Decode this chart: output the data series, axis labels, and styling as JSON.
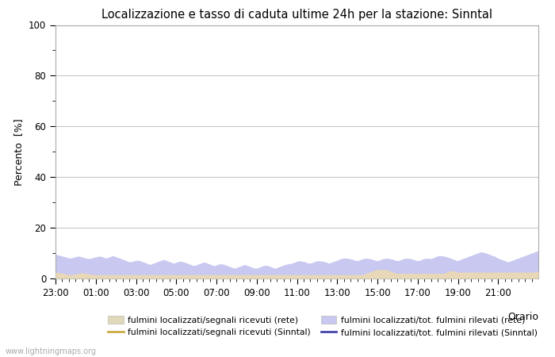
{
  "title": "Localizzazione e tasso di caduta ultime 24h per la stazione: Sinntal",
  "xlabel": "Orario",
  "ylabel": "Percento  [%]",
  "ylim": [
    0,
    100
  ],
  "yticks": [
    0,
    20,
    40,
    60,
    80,
    100
  ],
  "yticks_minor": [
    10,
    30,
    50,
    70,
    90
  ],
  "x_labels": [
    "23:00",
    "01:00",
    "03:00",
    "05:00",
    "07:00",
    "09:00",
    "11:00",
    "13:00",
    "15:00",
    "17:00",
    "19:00",
    "21:00"
  ],
  "background_color": "#ffffff",
  "plot_bg_color": "#ffffff",
  "grid_color": "#c8c8c8",
  "watermark": "www.lightningmaps.org",
  "fill_rete_color": "#c8c8f0",
  "fill_sinntal_color": "#e8d8b8",
  "line_rete_color": "#9090cc",
  "line_sinntal_color": "#ccaa44",
  "legend_fill_rete_color": "#e0d8b8",
  "legend_fill_tot_rete_color": "#c8c8f0",
  "legend_line_sinntal_color": "#ccaa44",
  "legend_line_tot_sinntal_color": "#4444aa",
  "n_points": 144,
  "rete_fill_data": [
    9.5,
    9.2,
    8.8,
    8.5,
    8.0,
    8.2,
    8.6,
    8.8,
    8.4,
    8.0,
    7.8,
    8.2,
    8.5,
    8.8,
    8.5,
    8.0,
    8.5,
    9.0,
    8.5,
    8.0,
    7.5,
    7.0,
    6.5,
    6.8,
    7.2,
    7.0,
    6.5,
    6.0,
    5.5,
    6.0,
    6.5,
    7.0,
    7.5,
    7.0,
    6.5,
    6.0,
    6.5,
    6.8,
    6.5,
    6.0,
    5.5,
    5.0,
    5.5,
    6.0,
    6.5,
    6.0,
    5.5,
    5.0,
    5.5,
    5.8,
    5.5,
    5.0,
    4.5,
    4.0,
    4.5,
    5.0,
    5.5,
    5.0,
    4.5,
    4.0,
    4.2,
    4.8,
    5.2,
    5.0,
    4.5,
    4.0,
    4.5,
    5.0,
    5.5,
    5.8,
    6.0,
    6.5,
    7.0,
    6.8,
    6.5,
    6.0,
    6.2,
    6.8,
    7.0,
    6.8,
    6.5,
    6.0,
    6.5,
    7.0,
    7.5,
    8.0,
    8.0,
    7.8,
    7.5,
    7.0,
    7.2,
    7.8,
    8.0,
    7.8,
    7.5,
    7.0,
    7.2,
    7.8,
    8.0,
    7.8,
    7.5,
    7.0,
    7.2,
    7.8,
    8.0,
    7.8,
    7.5,
    7.0,
    7.2,
    7.8,
    8.0,
    7.8,
    8.2,
    8.8,
    9.0,
    8.8,
    8.5,
    8.0,
    7.5,
    7.0,
    7.5,
    8.0,
    8.5,
    9.0,
    9.5,
    10.0,
    10.5,
    10.2,
    9.8,
    9.2,
    8.8,
    8.0,
    7.5,
    7.0,
    6.5,
    7.0,
    7.5,
    8.0,
    8.5,
    9.0,
    9.5,
    10.0,
    10.5,
    11.0
  ],
  "sinntal_fill_data": [
    2.5,
    2.3,
    2.0,
    1.8,
    1.5,
    1.5,
    1.8,
    2.0,
    2.2,
    2.0,
    1.8,
    1.5,
    1.5,
    1.5,
    1.5,
    1.5,
    1.5,
    1.5,
    1.5,
    1.5,
    1.5,
    1.5,
    1.5,
    1.5,
    1.5,
    1.5,
    1.5,
    1.5,
    1.5,
    1.5,
    1.5,
    1.5,
    1.5,
    1.5,
    1.5,
    1.5,
    1.5,
    1.5,
    1.5,
    1.5,
    1.5,
    1.5,
    1.5,
    1.5,
    1.5,
    1.5,
    1.5,
    1.5,
    1.5,
    1.5,
    1.5,
    1.5,
    1.5,
    1.5,
    1.5,
    1.5,
    1.5,
    1.5,
    1.5,
    1.5,
    1.5,
    1.5,
    1.5,
    1.5,
    1.5,
    1.5,
    1.5,
    1.5,
    1.5,
    1.5,
    1.5,
    1.5,
    1.5,
    1.5,
    1.5,
    1.5,
    1.5,
    1.5,
    1.5,
    1.5,
    1.5,
    1.5,
    1.5,
    1.5,
    1.5,
    1.5,
    1.5,
    1.5,
    1.5,
    1.5,
    1.5,
    1.5,
    2.0,
    2.5,
    3.0,
    3.5,
    3.5,
    3.5,
    3.5,
    3.0,
    2.5,
    2.0,
    2.0,
    2.0,
    2.0,
    2.0,
    2.0,
    2.0,
    2.0,
    2.0,
    2.0,
    2.0,
    2.0,
    2.0,
    2.0,
    2.0,
    2.5,
    3.0,
    3.0,
    2.5,
    2.5,
    2.5,
    2.5,
    2.5,
    2.5,
    2.5,
    2.5,
    2.5,
    2.5,
    2.5,
    2.5,
    2.5,
    2.5,
    2.5,
    2.5,
    2.5,
    2.5,
    2.5,
    2.5,
    2.5,
    2.5,
    2.5,
    2.5,
    3.0
  ]
}
